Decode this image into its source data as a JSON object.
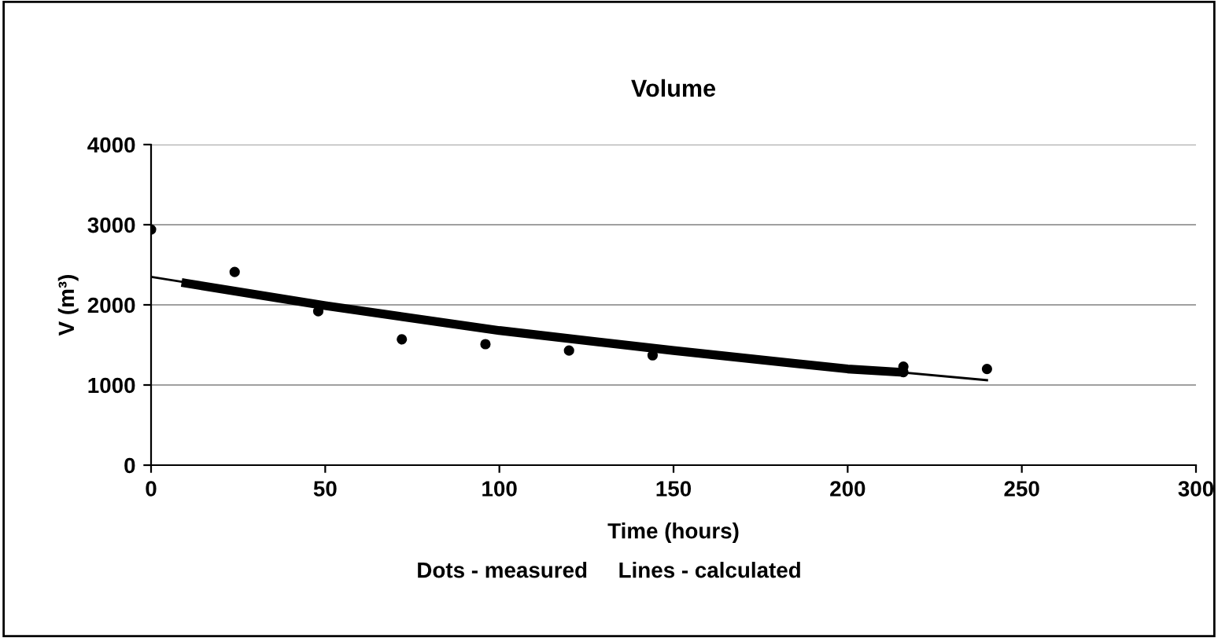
{
  "chart_data": {
    "type": "scatter",
    "title": "Volume",
    "xlabel": "Time (hours)",
    "ylabel": "V (m³)",
    "series": [
      {
        "marker": "circle",
        "color": "#000000",
        "x": [
          0,
          24,
          48,
          72,
          96,
          120,
          144,
          216,
          216,
          240
        ],
        "values": [
          2940,
          2410,
          1920,
          1570,
          1510,
          1430,
          1370,
          1230,
          1160,
          1200
        ]
      },
      {
        "type": "line",
        "color": "#000000",
        "x": [
          0,
          50,
          100,
          150,
          200,
          240
        ],
        "values": [
          2350,
          2000,
          1700,
          1440,
          1220,
          1060
        ]
      },
      {
        "type": "line",
        "color": "#000000",
        "x": [
          10,
          50,
          100,
          150,
          200,
          215
        ],
        "values": [
          2270,
          1990,
          1680,
          1430,
          1200,
          1160
        ]
      }
    ],
    "xlim": [
      0,
      300
    ],
    "xticks": [
      0,
      50,
      100,
      150,
      200,
      250,
      300
    ],
    "ylim": [
      0,
      4000
    ],
    "yticks": [
      0,
      1000,
      2000,
      3000,
      4000
    ],
    "grid": "y",
    "annotations": [
      "Dots - measured     Lines - calculated"
    ]
  }
}
